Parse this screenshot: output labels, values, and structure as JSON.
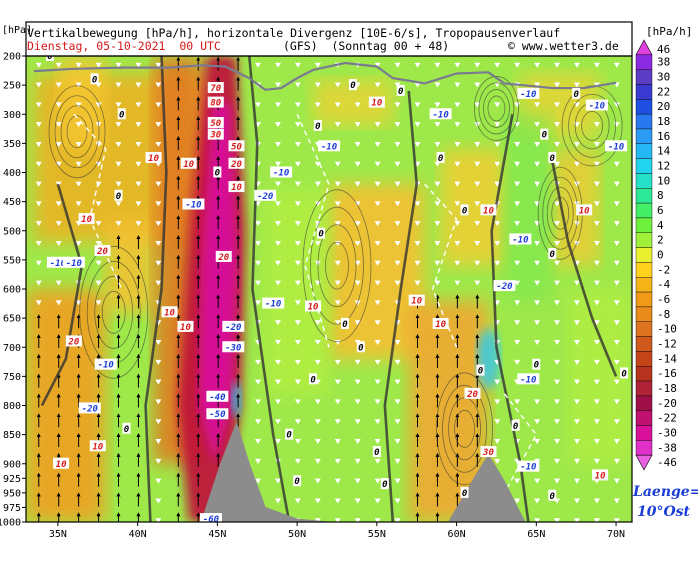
{
  "header": {
    "title_line": "Vertikalbewegung [hPa/h], horizontale Divergenz [10E-6/s], Tropopausenverlauf",
    "date_text": "Dienstag, 05-10-2021  00 UTC",
    "model_text": "(GFS)  (Sonntag 00 + 48)",
    "credit_text": "© www.wetter3.de"
  },
  "chart_data": {
    "type": "heatmap",
    "title": "Vertikalbewegung [hPa/h], horizontale Divergenz [10E-6/s], Tropopausenverlauf",
    "y_axis_unit": "[hPa]",
    "y_ticks": [
      200,
      250,
      300,
      350,
      400,
      450,
      500,
      550,
      600,
      650,
      700,
      750,
      800,
      850,
      900,
      925,
      950,
      975,
      1000
    ],
    "x_ticks": [
      "35N",
      "40N",
      "45N",
      "50N",
      "55N",
      "60N",
      "65N",
      "70N"
    ],
    "x_range": [
      33,
      71
    ],
    "colorbar": {
      "unit": "[hPa/h]",
      "labels": [
        "46",
        "38",
        "30",
        "22",
        "20",
        "18",
        "16",
        "14",
        "12",
        "10",
        "8",
        "6",
        "4",
        "2",
        "0",
        "-2",
        "-4",
        "-6",
        "-8",
        "-10",
        "-12",
        "-14",
        "-16",
        "-18",
        "-20",
        "-22",
        "-30",
        "-38",
        "-46"
      ],
      "colors": [
        "#e040e0",
        "#8a2be2",
        "#5b3cc4",
        "#3a3ad0",
        "#1f4fe0",
        "#2a78f0",
        "#2a9cf5",
        "#26b8f5",
        "#22d4f0",
        "#26e0c8",
        "#2ee89a",
        "#44ee66",
        "#6ef03c",
        "#a0f03a",
        "#e8f030",
        "#ffd21e",
        "#f5b418",
        "#f09a18",
        "#e88a1c",
        "#de7420",
        "#d05a1e",
        "#c44418",
        "#b83220",
        "#b02238",
        "#a01048",
        "#c01070",
        "#d8109a",
        "#e030c8",
        "#e860e0"
      ]
    },
    "vertical_motion_labels": [
      {
        "lat": 44.9,
        "p": 335,
        "value": "30"
      },
      {
        "lat": 44.9,
        "p": 315,
        "value": "50"
      },
      {
        "lat": 44.9,
        "p": 255,
        "value": "70"
      },
      {
        "lat": 44.9,
        "p": 280,
        "value": "80"
      },
      {
        "lat": 45.4,
        "p": 545,
        "value": "20"
      },
      {
        "lat": 46.2,
        "p": 355,
        "value": "50"
      },
      {
        "lat": 46.2,
        "p": 385,
        "value": "20"
      },
      {
        "lat": 46.2,
        "p": 425,
        "value": "10"
      },
      {
        "lat": 42.0,
        "p": 640,
        "value": "10"
      },
      {
        "lat": 43.0,
        "p": 665,
        "value": "10"
      },
      {
        "lat": 46.0,
        "p": 665,
        "value": "-20"
      },
      {
        "lat": 46.0,
        "p": 700,
        "value": "-30"
      },
      {
        "lat": 45.0,
        "p": 785,
        "value": "-40"
      },
      {
        "lat": 45.0,
        "p": 815,
        "value": "-50"
      },
      {
        "lat": 44.6,
        "p": 995,
        "value": "-60"
      },
      {
        "lat": 36.0,
        "p": 690,
        "value": "20"
      },
      {
        "lat": 37.8,
        "p": 535,
        "value": "20"
      },
      {
        "lat": 35.2,
        "p": 900,
        "value": "10"
      },
      {
        "lat": 37.5,
        "p": 870,
        "value": "10"
      },
      {
        "lat": 36.8,
        "p": 480,
        "value": "10"
      },
      {
        "lat": 41.0,
        "p": 375,
        "value": "10"
      },
      {
        "lat": 43.2,
        "p": 385,
        "value": "10"
      },
      {
        "lat": 35.0,
        "p": 555,
        "value": "-10"
      },
      {
        "lat": 36.0,
        "p": 555,
        "value": "-10"
      },
      {
        "lat": 38.0,
        "p": 730,
        "value": "-10"
      },
      {
        "lat": 37.0,
        "p": 805,
        "value": "-20"
      },
      {
        "lat": 43.5,
        "p": 455,
        "value": "-10"
      },
      {
        "lat": 48.0,
        "p": 440,
        "value": "-20"
      },
      {
        "lat": 49.0,
        "p": 400,
        "value": "-10"
      },
      {
        "lat": 48.5,
        "p": 625,
        "value": "-10"
      },
      {
        "lat": 51.0,
        "p": 630,
        "value": "10"
      },
      {
        "lat": 55.0,
        "p": 280,
        "value": "10"
      },
      {
        "lat": 57.5,
        "p": 620,
        "value": "10"
      },
      {
        "lat": 59.0,
        "p": 660,
        "value": "10"
      },
      {
        "lat": 61.0,
        "p": 780,
        "value": "20"
      },
      {
        "lat": 62.0,
        "p": 880,
        "value": "30"
      },
      {
        "lat": 64.0,
        "p": 515,
        "value": "-10"
      },
      {
        "lat": 63.0,
        "p": 595,
        "value": "-20"
      },
      {
        "lat": 64.5,
        "p": 755,
        "value": "-10"
      },
      {
        "lat": 64.5,
        "p": 905,
        "value": "-10"
      },
      {
        "lat": 62.0,
        "p": 465,
        "value": "10"
      },
      {
        "lat": 68.0,
        "p": 465,
        "value": "10"
      },
      {
        "lat": 69.0,
        "p": 920,
        "value": "10"
      },
      {
        "lat": 59.0,
        "p": 300,
        "value": "-10"
      },
      {
        "lat": 64.5,
        "p": 265,
        "value": "-10"
      },
      {
        "lat": 68.8,
        "p": 285,
        "value": "-10"
      },
      {
        "lat": 70.0,
        "p": 355,
        "value": "-10"
      },
      {
        "lat": 52.0,
        "p": 355,
        "value": "-10"
      }
    ],
    "divergence_zero_labels": [
      {
        "lat": 34.5,
        "p": 200,
        "value": "0"
      },
      {
        "lat": 37.3,
        "p": 240,
        "value": "0"
      },
      {
        "lat": 39.0,
        "p": 300,
        "value": "0"
      },
      {
        "lat": 38.8,
        "p": 440,
        "value": "0"
      },
      {
        "lat": 45.0,
        "p": 400,
        "value": "0"
      },
      {
        "lat": 51.3,
        "p": 320,
        "value": "0"
      },
      {
        "lat": 53.5,
        "p": 250,
        "value": "0"
      },
      {
        "lat": 56.5,
        "p": 260,
        "value": "0"
      },
      {
        "lat": 66.0,
        "p": 375,
        "value": "0"
      },
      {
        "lat": 65.5,
        "p": 335,
        "value": "0"
      },
      {
        "lat": 67.5,
        "p": 265,
        "value": "0"
      },
      {
        "lat": 59.0,
        "p": 375,
        "value": "0"
      },
      {
        "lat": 60.5,
        "p": 465,
        "value": "0"
      },
      {
        "lat": 66.0,
        "p": 540,
        "value": "0"
      },
      {
        "lat": 51.5,
        "p": 505,
        "value": "0"
      },
      {
        "lat": 53.0,
        "p": 660,
        "value": "0"
      },
      {
        "lat": 54.0,
        "p": 700,
        "value": "0"
      },
      {
        "lat": 55.0,
        "p": 880,
        "value": "0"
      },
      {
        "lat": 51.0,
        "p": 755,
        "value": "0"
      },
      {
        "lat": 39.3,
        "p": 840,
        "value": "0"
      },
      {
        "lat": 49.5,
        "p": 850,
        "value": "0"
      },
      {
        "lat": 50.0,
        "p": 930,
        "value": "0"
      },
      {
        "lat": 55.5,
        "p": 935,
        "value": "0"
      },
      {
        "lat": 61.5,
        "p": 740,
        "value": "0"
      },
      {
        "lat": 63.7,
        "p": 835,
        "value": "0"
      },
      {
        "lat": 65.0,
        "p": 730,
        "value": "0"
      },
      {
        "lat": 70.5,
        "p": 745,
        "value": "0"
      },
      {
        "lat": 60.5,
        "p": 950,
        "value": "0"
      },
      {
        "lat": 66.0,
        "p": 955,
        "value": "0"
      }
    ],
    "terrain": [
      {
        "lat": 44.0,
        "p": 1000
      },
      {
        "lat": 45.2,
        "p": 900
      },
      {
        "lat": 46.2,
        "p": 830
      },
      {
        "lat": 47.0,
        "p": 900
      },
      {
        "lat": 48.0,
        "p": 975
      },
      {
        "lat": 50.0,
        "p": 995
      },
      {
        "lat": 52.0,
        "p": 1000
      },
      {
        "lat": 59.5,
        "p": 1000
      },
      {
        "lat": 61.2,
        "p": 920
      },
      {
        "lat": 62.0,
        "p": 885
      },
      {
        "lat": 63.0,
        "p": 930
      },
      {
        "lat": 64.0,
        "p": 985
      },
      {
        "lat": 64.3,
        "p": 1000
      }
    ],
    "tropopause": [
      {
        "lat": 33.5,
        "p": 226
      },
      {
        "lat": 36,
        "p": 222
      },
      {
        "lat": 39,
        "p": 220
      },
      {
        "lat": 42,
        "p": 220
      },
      {
        "lat": 44,
        "p": 216
      },
      {
        "lat": 45.5,
        "p": 218
      },
      {
        "lat": 47,
        "p": 238
      },
      {
        "lat": 48,
        "p": 258
      },
      {
        "lat": 49,
        "p": 255
      },
      {
        "lat": 50,
        "p": 238
      },
      {
        "lat": 51,
        "p": 224
      },
      {
        "lat": 53,
        "p": 212
      },
      {
        "lat": 55,
        "p": 218
      },
      {
        "lat": 56,
        "p": 238
      },
      {
        "lat": 58,
        "p": 247
      },
      {
        "lat": 60,
        "p": 230
      },
      {
        "lat": 62,
        "p": 228
      },
      {
        "lat": 63,
        "p": 247
      },
      {
        "lat": 66,
        "p": 255
      },
      {
        "lat": 68,
        "p": 255
      },
      {
        "lat": 70,
        "p": 246
      }
    ],
    "section_label_top": "Laenge=",
    "section_label_bottom": "10°Ost"
  }
}
